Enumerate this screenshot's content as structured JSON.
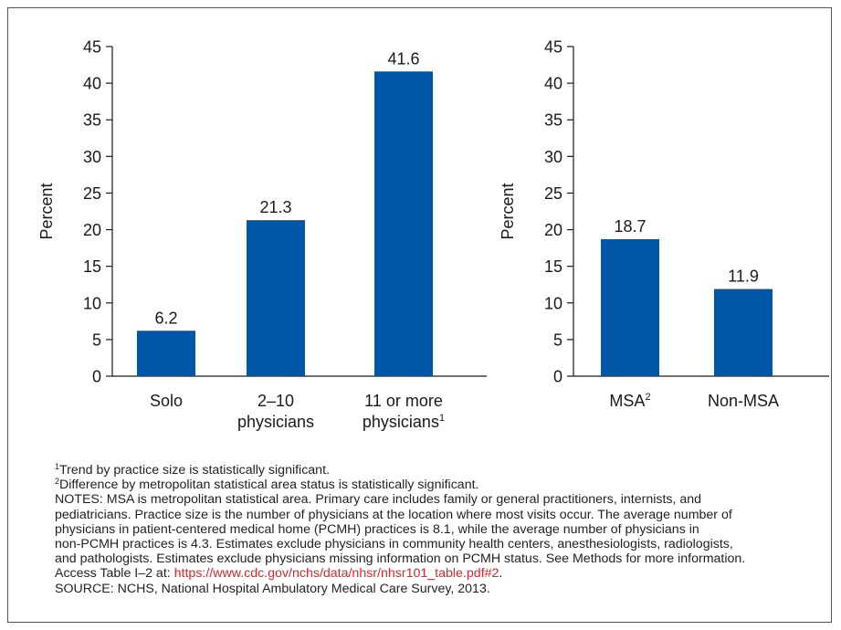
{
  "chart_data": [
    {
      "type": "bar",
      "ylabel": "Percent",
      "ylim": [
        0,
        45
      ],
      "yticks": [
        0,
        5,
        10,
        15,
        20,
        25,
        30,
        35,
        40,
        45
      ],
      "categories": [
        {
          "line1": "Solo",
          "line2": "",
          "sup": ""
        },
        {
          "line1": "2–10",
          "line2": "physicians",
          "sup": ""
        },
        {
          "line1": "11 or more",
          "line2": "physicians",
          "sup": "1"
        }
      ],
      "values": [
        6.2,
        21.3,
        41.6
      ],
      "value_labels": [
        "6.2",
        "21.3",
        "41.6"
      ],
      "color": "#0057a8"
    },
    {
      "type": "bar",
      "ylabel": "Percent",
      "ylim": [
        0,
        45
      ],
      "yticks": [
        0,
        5,
        10,
        15,
        20,
        25,
        30,
        35,
        40,
        45
      ],
      "categories": [
        {
          "line1": "MSA",
          "line2": "",
          "sup": "2"
        },
        {
          "line1": "Non-MSA",
          "line2": "",
          "sup": ""
        }
      ],
      "values": [
        18.7,
        11.9
      ],
      "value_labels": [
        "18.7",
        "11.9"
      ],
      "color": "#0057a8"
    }
  ],
  "notes": {
    "footnote1": {
      "sup": "1",
      "text": "Trend by practice size is statistically significant."
    },
    "footnote2": {
      "sup": "2",
      "text": "Difference by metropolitan statistical area status is statistically significant."
    },
    "lines": [
      "NOTES: MSA is metropolitan statistical area. Primary care includes family or general practitioners, internists, and",
      "pediatricians. Practice size is the number of physicians at the location where most visits occur. The average number of",
      "physicians in patient-centered medical home (PCMH) practices is 8.1, while the average number of physicians in",
      "non-PCMH practices is 4.3. Estimates exclude physicians in community health centers, anesthesiologists, radiologists,",
      "and pathologists. Estimates exclude physicians missing information on PCMH status. See Methods for more information."
    ],
    "access_prefix": "Access Table I–2 at: ",
    "access_link": "https://www.cdc.gov/nchs/data/nhsr/nhsr101_table.pdf#2",
    "access_suffix": ".",
    "source": "SOURCE: NCHS, National Hospital Ambulatory Medical Care Survey, 2013."
  }
}
